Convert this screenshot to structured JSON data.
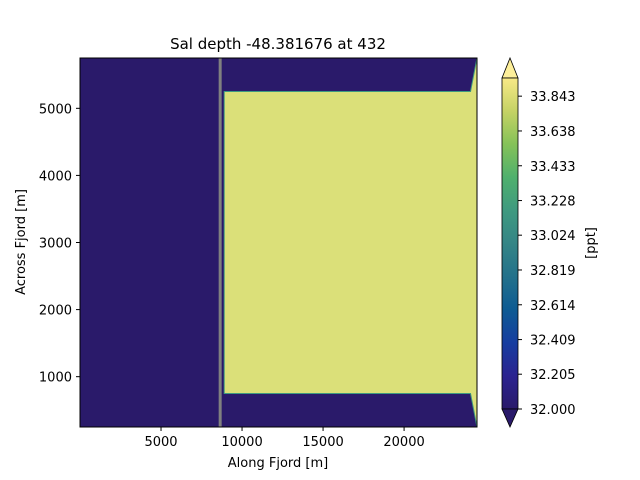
{
  "chart_data": {
    "type": "heatmap",
    "title": "Sal depth -48.381676 at 432",
    "xlabel": "Along Fjord [m]",
    "ylabel": "Across Fjord [m]",
    "xlim": [
      0,
      24500
    ],
    "ylim": [
      250,
      5750
    ],
    "xticks": [
      5000,
      10000,
      15000,
      20000
    ],
    "yticks": [
      1000,
      2000,
      3000,
      4000,
      5000
    ],
    "field": {
      "background_value": 32.0,
      "high_region": {
        "x": [
          8900,
          24100
        ],
        "y": [
          750,
          5250
        ],
        "value": 33.9
      },
      "wall_x": 8650,
      "wall_color": "#808080"
    },
    "colorbar": {
      "label": "[ppt]",
      "ticks": [
        "32.000",
        "32.205",
        "32.409",
        "32.614",
        "32.819",
        "33.024",
        "33.228",
        "33.433",
        "33.638",
        "33.843"
      ],
      "vmin": 32.0,
      "vmax": 33.95,
      "extend": "both",
      "colormap": "haline",
      "low_color": "#2a1a6a",
      "high_color": "#fdef9a"
    },
    "colors": {
      "field_low": "#2a1a6a",
      "field_high": "#dbe079"
    }
  }
}
